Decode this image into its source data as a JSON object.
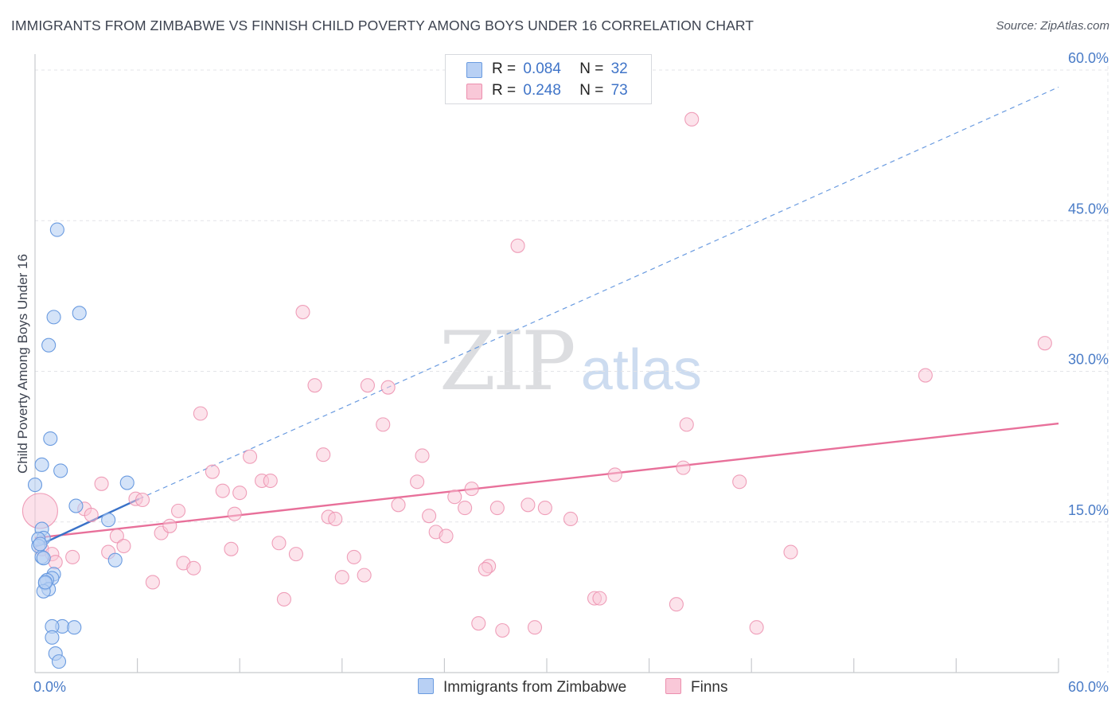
{
  "title": "IMMIGRANTS FROM ZIMBABWE VS FINNISH CHILD POVERTY AMONG BOYS UNDER 16 CORRELATION CHART",
  "source": "Source: ZipAtlas.com",
  "watermark": {
    "zip": "ZIP",
    "atlas": "atlas"
  },
  "legend": {
    "rows": [
      {
        "r_label": "R =",
        "r_value": "0.084",
        "n_label": "N =",
        "n_value": "32"
      },
      {
        "r_label": "R =",
        "r_value": "0.248",
        "n_label": "N =",
        "n_value": "73"
      }
    ]
  },
  "colors": {
    "zimbabwe_fill": "#b8d0f4",
    "zimbabwe_stroke": "#6a9be0",
    "zimbabwe_line": "#3a72c8",
    "finns_fill": "#f9c8d8",
    "finns_stroke": "#ec8fae",
    "finns_line": "#e8709a",
    "grid": "#e3e4e8",
    "axis_label": "#4a7cc7"
  },
  "chart_data": {
    "type": "scatter",
    "title": "IMMIGRANTS FROM ZIMBABWE VS FINNISH CHILD POVERTY AMONG BOYS UNDER 16 CORRELATION CHART",
    "xlabel": "",
    "ylabel": "Child Poverty Among Boys Under 16",
    "xlim": [
      0,
      60
    ],
    "ylim": [
      0,
      60
    ],
    "x_tick_labels": [
      "0.0%",
      "60.0%"
    ],
    "y_ticks": [
      15,
      30,
      45,
      60
    ],
    "y_tick_labels": [
      "15.0%",
      "30.0%",
      "45.0%",
      "60.0%"
    ],
    "grid": true,
    "legend_position": "bottom",
    "series": [
      {
        "name": "Immigrants from Zimbabwe",
        "r": 0.084,
        "n": 32,
        "trend_solid": [
          [
            0,
            12.5
          ],
          [
            6.1,
            17.3
          ]
        ],
        "trend_dashed": [
          [
            6.1,
            17.3
          ],
          [
            60,
            58.3
          ]
        ],
        "points": [
          [
            1.3,
            44.1
          ],
          [
            2.6,
            35.8
          ],
          [
            1.1,
            35.4
          ],
          [
            0.8,
            32.6
          ],
          [
            0.9,
            23.3
          ],
          [
            0.4,
            20.7
          ],
          [
            1.5,
            20.1
          ],
          [
            0,
            18.7
          ],
          [
            5.4,
            18.9
          ],
          [
            2.4,
            16.6
          ],
          [
            4.3,
            15.2
          ],
          [
            0.4,
            14.3
          ],
          [
            0.5,
            13.4
          ],
          [
            0.2,
            13.3
          ],
          [
            0.2,
            12.6
          ],
          [
            0.4,
            11.5
          ],
          [
            0.5,
            11.4
          ],
          [
            4.7,
            11.2
          ],
          [
            1.1,
            9.8
          ],
          [
            1.0,
            9.4
          ],
          [
            0.7,
            9.2
          ],
          [
            0.6,
            8.9
          ],
          [
            0.8,
            8.3
          ],
          [
            0.5,
            8.1
          ],
          [
            1.6,
            4.6
          ],
          [
            2.3,
            4.5
          ],
          [
            1.0,
            4.6
          ],
          [
            1.0,
            3.5
          ],
          [
            1.2,
            1.9
          ],
          [
            1.4,
            1.1
          ],
          [
            0.3,
            12.8
          ],
          [
            0.6,
            9.0
          ]
        ]
      },
      {
        "name": "Finns",
        "r": 0.248,
        "n": 73,
        "trend_solid": [
          [
            0,
            13.4
          ],
          [
            60,
            24.8
          ]
        ],
        "points": [
          [
            0.3,
            16.1
          ],
          [
            0.4,
            12.3
          ],
          [
            1.0,
            11.8
          ],
          [
            1.2,
            11.0
          ],
          [
            2.2,
            11.5
          ],
          [
            2.9,
            16.3
          ],
          [
            3.3,
            15.7
          ],
          [
            3.9,
            18.8
          ],
          [
            4.3,
            12.0
          ],
          [
            4.8,
            13.6
          ],
          [
            5.2,
            12.6
          ],
          [
            5.9,
            17.3
          ],
          [
            6.3,
            17.2
          ],
          [
            6.9,
            9.0
          ],
          [
            7.4,
            13.9
          ],
          [
            7.9,
            14.6
          ],
          [
            8.4,
            16.1
          ],
          [
            8.7,
            10.9
          ],
          [
            9.3,
            10.4
          ],
          [
            9.7,
            25.8
          ],
          [
            10.4,
            20.0
          ],
          [
            11.0,
            18.1
          ],
          [
            11.5,
            12.3
          ],
          [
            11.7,
            15.8
          ],
          [
            12.0,
            17.9
          ],
          [
            12.6,
            21.5
          ],
          [
            13.3,
            19.1
          ],
          [
            13.8,
            19.1
          ],
          [
            14.3,
            12.9
          ],
          [
            14.6,
            7.3
          ],
          [
            15.3,
            11.8
          ],
          [
            15.7,
            35.9
          ],
          [
            16.4,
            28.6
          ],
          [
            16.9,
            21.7
          ],
          [
            17.2,
            15.5
          ],
          [
            17.6,
            15.3
          ],
          [
            18.0,
            9.5
          ],
          [
            18.7,
            11.5
          ],
          [
            19.3,
            9.7
          ],
          [
            19.5,
            28.6
          ],
          [
            20.4,
            24.7
          ],
          [
            20.7,
            28.4
          ],
          [
            21.3,
            16.7
          ],
          [
            22.4,
            19.0
          ],
          [
            22.7,
            21.6
          ],
          [
            23.1,
            15.6
          ],
          [
            23.5,
            14.0
          ],
          [
            24.1,
            13.6
          ],
          [
            24.6,
            17.5
          ],
          [
            25.2,
            16.4
          ],
          [
            25.6,
            18.3
          ],
          [
            26.0,
            4.9
          ],
          [
            26.6,
            10.6
          ],
          [
            27.1,
            16.4
          ],
          [
            27.4,
            4.2
          ],
          [
            28.3,
            42.5
          ],
          [
            28.9,
            16.7
          ],
          [
            29.3,
            4.5
          ],
          [
            29.9,
            16.4
          ],
          [
            31.4,
            15.3
          ],
          [
            32.8,
            7.4
          ],
          [
            33.1,
            7.4
          ],
          [
            34.0,
            19.7
          ],
          [
            37.6,
            6.8
          ],
          [
            38.0,
            20.4
          ],
          [
            38.2,
            24.7
          ],
          [
            38.5,
            55.1
          ],
          [
            41.3,
            19.0
          ],
          [
            42.3,
            4.5
          ],
          [
            44.3,
            12.0
          ],
          [
            52.2,
            29.6
          ],
          [
            59.2,
            32.8
          ],
          [
            26.4,
            10.3
          ]
        ]
      }
    ]
  }
}
